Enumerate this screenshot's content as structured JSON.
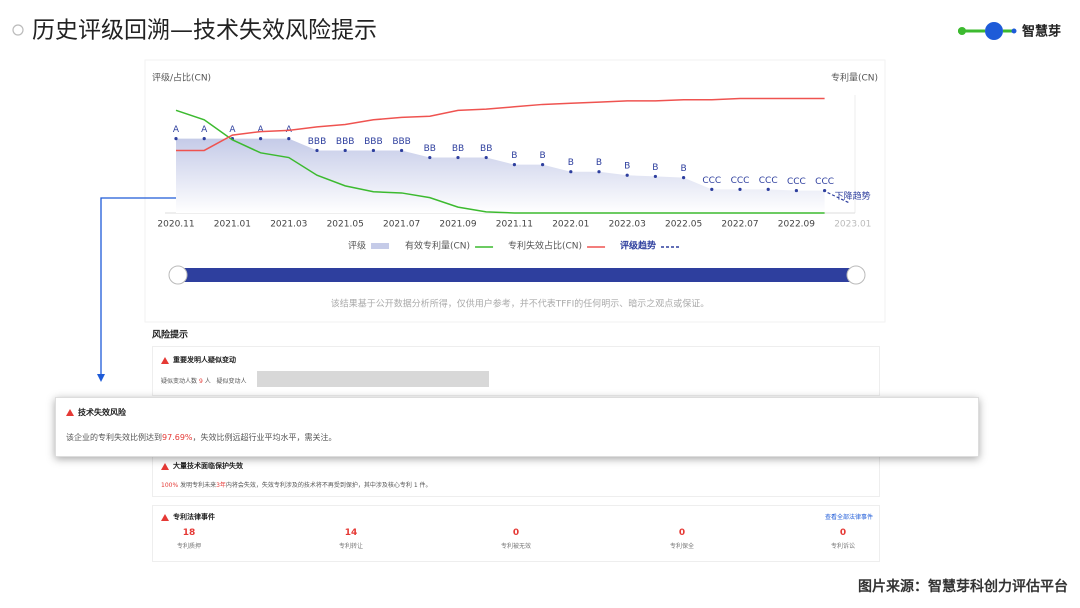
{
  "header": {
    "title": "历史评级回溯—技术失效风险提示",
    "logo_text": "智慧芽"
  },
  "chart_data": {
    "type": "line",
    "ylabel": "评级/占比(CN)",
    "y2label": "专利量(CN)",
    "categories": [
      "2020.11",
      null,
      "2021.01",
      null,
      "2021.03",
      null,
      "2021.05",
      null,
      "2021.07",
      null,
      "2021.09",
      null,
      "2021.11",
      null,
      "2022.01",
      null,
      "2022.03",
      null,
      "2022.05",
      null,
      "2022.07",
      null,
      "2022.09",
      null,
      "2023.01"
    ],
    "ylim": [
      0,
      100
    ],
    "y2lim": [
      0,
      100
    ],
    "series": [
      {
        "name": "评级",
        "kind": "area",
        "color": "#c5cbe8",
        "values": [
          63,
          63,
          63,
          63,
          63,
          53,
          53,
          53,
          53,
          47,
          47,
          47,
          41,
          41,
          35,
          35,
          32,
          31,
          30,
          20,
          20,
          20,
          19,
          19,
          null
        ],
        "value_labels": [
          "A",
          "A",
          "A",
          "A",
          "A",
          "BBB",
          "BBB",
          "BBB",
          "BBB",
          "BB",
          "BB",
          "BB",
          "B",
          "B",
          "B",
          "B",
          "B",
          "B",
          "B",
          "CCC",
          "CCC",
          "CCC",
          "CCC",
          "CCC",
          null
        ]
      },
      {
        "name": "有效专利量(CN)",
        "kind": "line",
        "color": "#3cba2f",
        "axis": "y2",
        "values": [
          87,
          79,
          62,
          51,
          47,
          32,
          23,
          18,
          17,
          13,
          5,
          1,
          0,
          0,
          0,
          0,
          0,
          0,
          0,
          0,
          0,
          0,
          0,
          0,
          null
        ]
      },
      {
        "name": "专利失效占比(CN)",
        "kind": "line",
        "color": "#ef5350",
        "values": [
          53,
          53,
          66,
          69,
          70,
          73,
          75,
          79,
          81,
          82,
          87,
          88,
          90,
          92,
          93,
          94,
          95,
          95,
          96,
          96,
          97,
          97,
          97,
          97,
          null
        ]
      }
    ],
    "trend": {
      "name": "评级趋势",
      "label": "下降趋势",
      "color": "#2e3f9e"
    }
  },
  "disclaimer": "该结果基于公开数据分析所得，仅供用户参考，并不代表TFFI的任何明示、暗示之观点或保证。",
  "risk": {
    "title": "风险提示",
    "inventor": {
      "title": "重要发明人疑似变动",
      "parts": [
        "疑似变动人数",
        "9",
        "人",
        "疑似变动人"
      ]
    },
    "failure": {
      "title": "技术失效风险",
      "parts": [
        "该企业的专利失效比例达到",
        "97.69%",
        "，失效比例远超行业平均水平，需关注。"
      ]
    },
    "protection": {
      "title": "大量技术面临保护失效",
      "parts": [
        "100%",
        "发明专利未来",
        "3年",
        "内将会失效，失效专利涉及的技术将不再受到保护，其中涉及核心专利 1 件。"
      ]
    },
    "legal": {
      "title": "专利法律事件",
      "link": "查看全部法律事件",
      "stats": [
        {
          "value": 18,
          "label": "专利质押"
        },
        {
          "value": 14,
          "label": "专利转让"
        },
        {
          "value": 0,
          "label": "专利被无效"
        },
        {
          "value": 0,
          "label": "专利保全"
        },
        {
          "value": 0,
          "label": "专利诉讼"
        }
      ]
    }
  },
  "footer": "图片来源：智慧芽科创力评估平台"
}
